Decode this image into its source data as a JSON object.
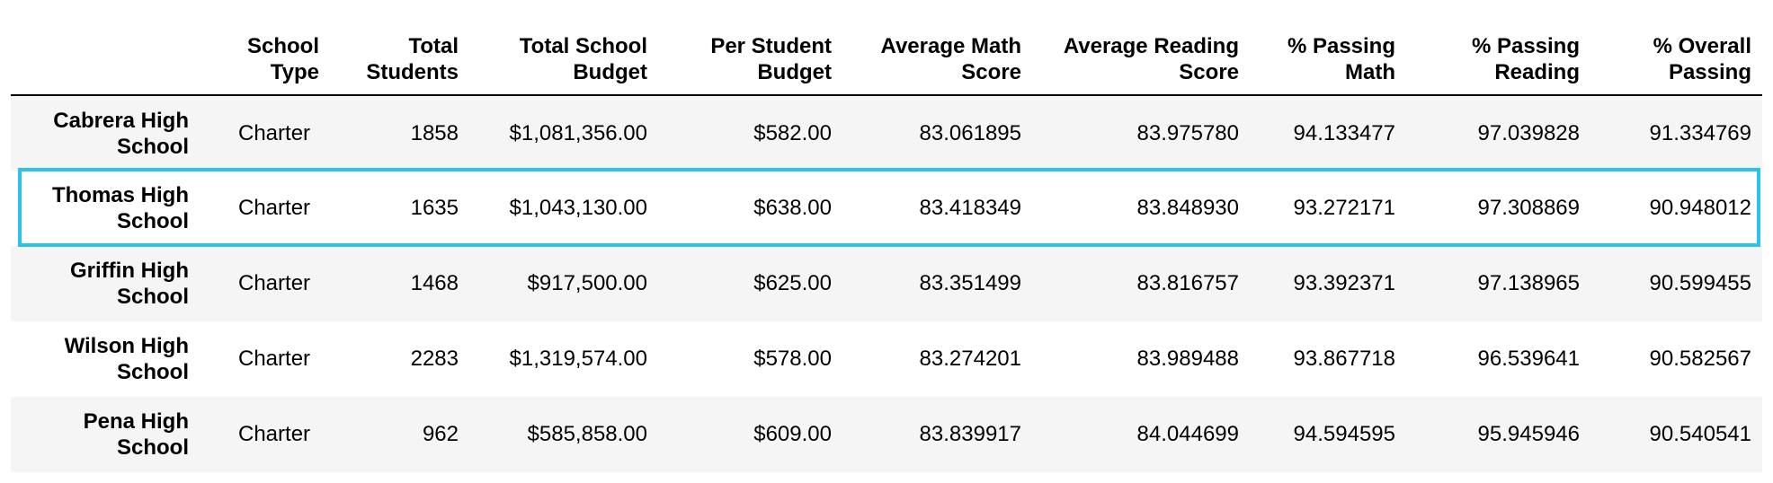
{
  "columns": {
    "index": "",
    "school_type": "School Type",
    "total_students": "Total Students",
    "total_budget": "Total School Budget",
    "per_student_budget": "Per Student Budget",
    "avg_math": "Average Math Score",
    "avg_reading": "Average Reading Score",
    "pct_math": "% Passing Math",
    "pct_reading": "% Passing Reading",
    "pct_overall": "% Overall Passing"
  },
  "rows": [
    {
      "school": "Cabrera High School",
      "school_type": "Charter",
      "total_students": "1858",
      "total_budget": "$1,081,356.00",
      "per_student_budget": "$582.00",
      "avg_math": "83.061895",
      "avg_reading": "83.975780",
      "pct_math": "94.133477",
      "pct_reading": "97.039828",
      "pct_overall": "91.334769"
    },
    {
      "school": "Thomas High School",
      "school_type": "Charter",
      "total_students": "1635",
      "total_budget": "$1,043,130.00",
      "per_student_budget": "$638.00",
      "avg_math": "83.418349",
      "avg_reading": "83.848930",
      "pct_math": "93.272171",
      "pct_reading": "97.308869",
      "pct_overall": "90.948012"
    },
    {
      "school": "Griffin High School",
      "school_type": "Charter",
      "total_students": "1468",
      "total_budget": "$917,500.00",
      "per_student_budget": "$625.00",
      "avg_math": "83.351499",
      "avg_reading": "83.816757",
      "pct_math": "93.392371",
      "pct_reading": "97.138965",
      "pct_overall": "90.599455"
    },
    {
      "school": "Wilson High School",
      "school_type": "Charter",
      "total_students": "2283",
      "total_budget": "$1,319,574.00",
      "per_student_budget": "$578.00",
      "avg_math": "83.274201",
      "avg_reading": "83.989488",
      "pct_math": "93.867718",
      "pct_reading": "96.539641",
      "pct_overall": "90.582567"
    },
    {
      "school": "Pena High School",
      "school_type": "Charter",
      "total_students": "962",
      "total_budget": "$585,858.00",
      "per_student_budget": "$609.00",
      "avg_math": "83.839917",
      "avg_reading": "84.044699",
      "pct_math": "94.594595",
      "pct_reading": "95.945946",
      "pct_overall": "90.540541"
    }
  ],
  "highlight": {
    "row": "Thomas High School",
    "color": "#2bc3ee"
  },
  "colors": {
    "stripe": "#f5f5f5",
    "header_rule": "#000000"
  }
}
